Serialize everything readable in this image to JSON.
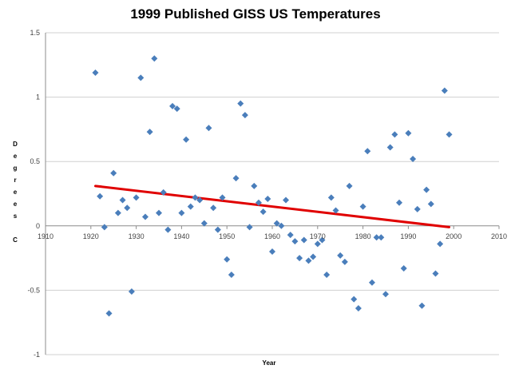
{
  "chart_data": {
    "type": "scatter",
    "title": "1999 Published GISS US Temperatures",
    "xlabel": "Year",
    "ylabel": "Degrees C",
    "xlim": [
      1910,
      2010
    ],
    "ylim": [
      -1,
      1.5
    ],
    "x_ticks": [
      "1910",
      "1920",
      "1930",
      "1940",
      "1950",
      "1960",
      "1970",
      "1980",
      "1990",
      "2000",
      "2010"
    ],
    "y_ticks": [
      "1.5",
      "1",
      "0.5",
      "0",
      "-0.5",
      "-1"
    ],
    "grid": "horizontal",
    "marker_color": "#4a7ebb",
    "trendline_color": "#e00000",
    "trendline": {
      "x": [
        1921,
        1999
      ],
      "y": [
        0.31,
        -0.01
      ]
    },
    "points": [
      {
        "x": 1921,
        "y": 1.19
      },
      {
        "x": 1922,
        "y": 0.23
      },
      {
        "x": 1923,
        "y": -0.01
      },
      {
        "x": 1924,
        "y": -0.68
      },
      {
        "x": 1925,
        "y": 0.41
      },
      {
        "x": 1926,
        "y": 0.1
      },
      {
        "x": 1927,
        "y": 0.2
      },
      {
        "x": 1928,
        "y": 0.14
      },
      {
        "x": 1929,
        "y": -0.51
      },
      {
        "x": 1930,
        "y": 0.22
      },
      {
        "x": 1931,
        "y": 1.15
      },
      {
        "x": 1932,
        "y": 0.07
      },
      {
        "x": 1933,
        "y": 0.73
      },
      {
        "x": 1934,
        "y": 1.3
      },
      {
        "x": 1935,
        "y": 0.1
      },
      {
        "x": 1936,
        "y": 0.26
      },
      {
        "x": 1937,
        "y": -0.03
      },
      {
        "x": 1938,
        "y": 0.93
      },
      {
        "x": 1939,
        "y": 0.91
      },
      {
        "x": 1940,
        "y": 0.1
      },
      {
        "x": 1941,
        "y": 0.67
      },
      {
        "x": 1942,
        "y": 0.15
      },
      {
        "x": 1943,
        "y": 0.22
      },
      {
        "x": 1944,
        "y": 0.2
      },
      {
        "x": 1945,
        "y": 0.02
      },
      {
        "x": 1946,
        "y": 0.76
      },
      {
        "x": 1947,
        "y": 0.14
      },
      {
        "x": 1948,
        "y": -0.03
      },
      {
        "x": 1949,
        "y": 0.22
      },
      {
        "x": 1950,
        "y": -0.26
      },
      {
        "x": 1951,
        "y": -0.38
      },
      {
        "x": 1952,
        "y": 0.37
      },
      {
        "x": 1953,
        "y": 0.95
      },
      {
        "x": 1954,
        "y": 0.86
      },
      {
        "x": 1955,
        "y": -0.01
      },
      {
        "x": 1956,
        "y": 0.31
      },
      {
        "x": 1957,
        "y": 0.18
      },
      {
        "x": 1958,
        "y": 0.11
      },
      {
        "x": 1959,
        "y": 0.21
      },
      {
        "x": 1960,
        "y": -0.2
      },
      {
        "x": 1961,
        "y": 0.02
      },
      {
        "x": 1962,
        "y": 0.0
      },
      {
        "x": 1963,
        "y": 0.2
      },
      {
        "x": 1964,
        "y": -0.07
      },
      {
        "x": 1965,
        "y": -0.12
      },
      {
        "x": 1966,
        "y": -0.25
      },
      {
        "x": 1967,
        "y": -0.11
      },
      {
        "x": 1968,
        "y": -0.27
      },
      {
        "x": 1969,
        "y": -0.24
      },
      {
        "x": 1970,
        "y": -0.14
      },
      {
        "x": 1971,
        "y": -0.11
      },
      {
        "x": 1972,
        "y": -0.38
      },
      {
        "x": 1973,
        "y": 0.22
      },
      {
        "x": 1974,
        "y": 0.12
      },
      {
        "x": 1975,
        "y": -0.23
      },
      {
        "x": 1976,
        "y": -0.28
      },
      {
        "x": 1977,
        "y": 0.31
      },
      {
        "x": 1978,
        "y": -0.57
      },
      {
        "x": 1979,
        "y": -0.64
      },
      {
        "x": 1980,
        "y": 0.15
      },
      {
        "x": 1981,
        "y": 0.58
      },
      {
        "x": 1982,
        "y": -0.44
      },
      {
        "x": 1983,
        "y": -0.09
      },
      {
        "x": 1984,
        "y": -0.09
      },
      {
        "x": 1985,
        "y": -0.53
      },
      {
        "x": 1986,
        "y": 0.61
      },
      {
        "x": 1987,
        "y": 0.71
      },
      {
        "x": 1988,
        "y": 0.18
      },
      {
        "x": 1989,
        "y": -0.33
      },
      {
        "x": 1990,
        "y": 0.72
      },
      {
        "x": 1991,
        "y": 0.52
      },
      {
        "x": 1992,
        "y": 0.13
      },
      {
        "x": 1993,
        "y": -0.62
      },
      {
        "x": 1994,
        "y": 0.28
      },
      {
        "x": 1995,
        "y": 0.17
      },
      {
        "x": 1996,
        "y": -0.37
      },
      {
        "x": 1997,
        "y": -0.14
      },
      {
        "x": 1998,
        "y": 1.05
      },
      {
        "x": 1999,
        "y": 0.71
      }
    ]
  }
}
